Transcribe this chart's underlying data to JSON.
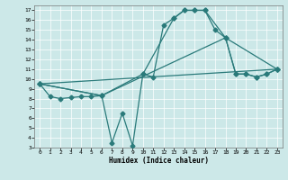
{
  "xlabel": "Humidex (Indice chaleur)",
  "bg_color": "#cce8e8",
  "grid_color": "#ffffff",
  "line_color": "#2a7a7a",
  "xlim": [
    -0.5,
    23.5
  ],
  "ylim": [
    3,
    17.5
  ],
  "xticks": [
    0,
    1,
    2,
    3,
    4,
    5,
    6,
    7,
    8,
    9,
    10,
    11,
    12,
    13,
    14,
    15,
    16,
    17,
    18,
    19,
    20,
    21,
    22,
    23
  ],
  "yticks": [
    3,
    4,
    5,
    6,
    7,
    8,
    9,
    10,
    11,
    12,
    13,
    14,
    15,
    16,
    17
  ],
  "line1_x": [
    0,
    1,
    2,
    3,
    4,
    5,
    6,
    7,
    8,
    9,
    10,
    11,
    12,
    13,
    14,
    15,
    16,
    17,
    18,
    19,
    20,
    21,
    22,
    23
  ],
  "line1_y": [
    9.5,
    8.2,
    8.0,
    8.1,
    8.2,
    8.2,
    8.3,
    3.5,
    6.5,
    3.2,
    10.5,
    10.2,
    15.5,
    16.2,
    17.0,
    17.0,
    17.0,
    15.0,
    14.2,
    10.5,
    10.5,
    10.2,
    10.5,
    11.0
  ],
  "line2_x": [
    0,
    6,
    10,
    13,
    14,
    15,
    16,
    18,
    19,
    20,
    21,
    22,
    23
  ],
  "line2_y": [
    9.5,
    8.3,
    10.5,
    16.2,
    17.0,
    17.0,
    17.0,
    14.2,
    10.5,
    10.5,
    10.2,
    10.5,
    11.0
  ],
  "line3_x": [
    0,
    6,
    18,
    23
  ],
  "line3_y": [
    9.5,
    8.3,
    14.2,
    11.0
  ],
  "line4_x": [
    0,
    23
  ],
  "line4_y": [
    9.5,
    11.0
  ],
  "marker": "D",
  "markersize": 2.5
}
